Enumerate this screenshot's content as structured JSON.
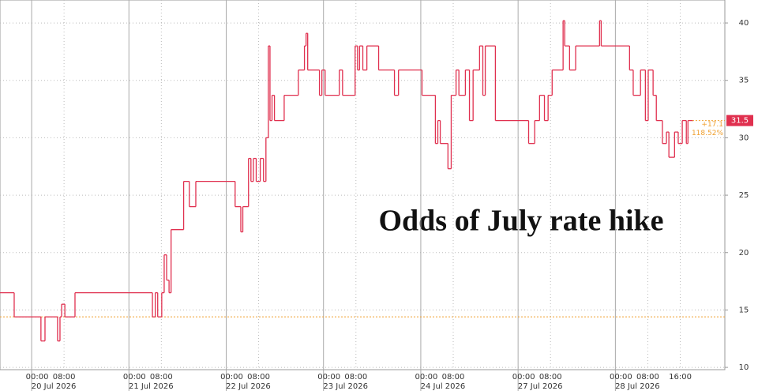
{
  "chart_data": {
    "type": "step",
    "title": "Odds of July rate hike",
    "xlim": [
      -7.8,
      171
    ],
    "ylim": [
      9.8,
      42
    ],
    "yticks": [
      10,
      15,
      20,
      25,
      30,
      35,
      40
    ],
    "xticks": [
      {
        "value": 0,
        "label": "00:00"
      },
      {
        "value": 8,
        "label": "08:00"
      },
      {
        "value": 24,
        "label": "00:00"
      },
      {
        "value": 32,
        "label": "08:00"
      },
      {
        "value": 48,
        "label": "00:00"
      },
      {
        "value": 56,
        "label": "08:00"
      },
      {
        "value": 72,
        "label": "00:00"
      },
      {
        "value": 80,
        "label": "08:00"
      },
      {
        "value": 96,
        "label": "00:00"
      },
      {
        "value": 104,
        "label": "08:00"
      },
      {
        "value": 120,
        "label": "00:00"
      },
      {
        "value": 128,
        "label": "08:00"
      },
      {
        "value": 144,
        "label": "00:00"
      },
      {
        "value": 152,
        "label": "08:00"
      },
      {
        "value": 160,
        "label": "16:00"
      }
    ],
    "day_labels": [
      "20 Jul 2026",
      "21 Jul 2026",
      "22 Jul 2026",
      "23 Jul 2026",
      "24 Jul 2026",
      "27 Jul 2026",
      "28 Jul 2026"
    ],
    "grid": true,
    "reference_line": {
      "value": 14.4,
      "color": "#f0a030"
    },
    "last_value": 31.5,
    "annotations": [
      "+17.1",
      "118.52%"
    ],
    "series": [
      {
        "color": "#e0304f",
        "x": [
          -7.8,
          -4.3,
          2.3,
          3.3,
          6.4,
          7.0,
          7.4,
          8.2,
          10.7,
          29.8,
          30.5,
          31.1,
          32.1,
          32.7,
          33.3,
          33.9,
          34.4,
          37.5,
          38.9,
          40.5,
          50.2,
          51.6,
          52.1,
          53.5,
          54.1,
          54.7,
          55.4,
          56.4,
          57.2,
          57.8,
          58.4,
          58.8,
          59.3,
          59.9,
          62.3,
          65.8,
          67.3,
          67.7,
          68.1,
          71.0,
          71.6,
          72.4,
          75.9,
          76.7,
          79.8,
          80.4,
          80.9,
          81.7,
          82.7,
          85.6,
          89.5,
          90.5,
          96.3,
          99.6,
          100.2,
          100.8,
          102.7,
          103.5,
          104.7,
          105.4,
          107.0,
          108.0,
          108.9,
          110.5,
          111.3,
          111.9,
          114.4,
          122.6,
          124.1,
          125.3,
          126.5,
          127.4,
          128.4,
          131.1,
          131.5,
          132.7,
          134.2,
          140.1,
          140.5,
          147.5,
          148.4,
          150.2,
          151.4,
          152.1,
          153.3,
          154.1,
          155.6,
          156.6,
          157.2,
          158.6,
          159.5,
          160.5,
          161.5,
          161.9,
          163.0
        ],
        "values": [
          16.5,
          14.4,
          12.3,
          14.4,
          12.3,
          14.4,
          15.5,
          14.4,
          16.5,
          14.4,
          16.5,
          14.4,
          16.5,
          19.8,
          17.6,
          16.5,
          22,
          26.2,
          24,
          26.2,
          24,
          21.8,
          24,
          28.2,
          26.2,
          28.2,
          26.2,
          28.2,
          26.2,
          30,
          38,
          31.5,
          33.7,
          31.5,
          33.7,
          35.9,
          38,
          39.1,
          35.9,
          33.7,
          35.9,
          33.7,
          35.9,
          33.7,
          38,
          35.9,
          38,
          35.9,
          38,
          35.9,
          33.7,
          35.9,
          33.7,
          29.5,
          31.5,
          29.5,
          27.3,
          33.7,
          35.9,
          33.7,
          35.9,
          31.5,
          35.9,
          38,
          33.7,
          38,
          31.5,
          29.5,
          31.5,
          33.7,
          31.5,
          33.7,
          35.9,
          40.2,
          38,
          35.9,
          38,
          40.2,
          38,
          35.9,
          33.7,
          35.9,
          31.5,
          35.9,
          33.7,
          31.5,
          29.5,
          30.5,
          28.3,
          30.5,
          29.5,
          31.5,
          29.5,
          31.5,
          31.5
        ]
      }
    ]
  }
}
